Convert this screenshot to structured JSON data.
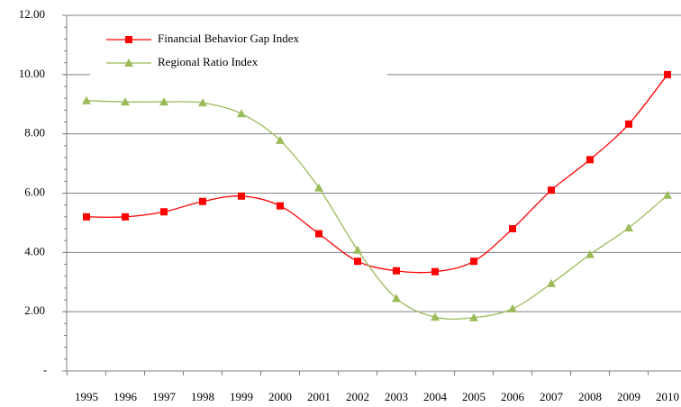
{
  "chart_data": {
    "type": "line",
    "categories": [
      "1995",
      "1996",
      "1997",
      "1998",
      "1999",
      "2000",
      "2001",
      "2002",
      "2003",
      "2004",
      "2005",
      "2006",
      "2007",
      "2008",
      "2009",
      "2010"
    ],
    "series": [
      {
        "name": "Financial Behavior Gap Index",
        "color": "#ff0000",
        "marker": "square",
        "values": [
          5.2,
          5.2,
          5.37,
          5.72,
          5.9,
          5.57,
          4.63,
          3.7,
          3.38,
          3.35,
          3.7,
          4.8,
          6.1,
          7.13,
          8.33,
          10.0
        ]
      },
      {
        "name": "Regional Ratio Index",
        "color": "#9bbb59",
        "marker": "triangle",
        "values": [
          9.12,
          9.08,
          9.08,
          9.05,
          8.68,
          7.78,
          6.18,
          4.08,
          2.45,
          1.82,
          1.8,
          2.1,
          2.95,
          3.93,
          4.83,
          5.93
        ]
      }
    ],
    "ylim": [
      0,
      12
    ],
    "yticks": [
      {
        "value": 0,
        "label": "-"
      },
      {
        "value": 2,
        "label": "2.00"
      },
      {
        "value": 4,
        "label": "4.00"
      },
      {
        "value": 6,
        "label": "6.00"
      },
      {
        "value": 8,
        "label": "8.00"
      },
      {
        "value": 10,
        "label": "10.00"
      },
      {
        "value": 12,
        "label": "12.00"
      }
    ],
    "grid": true,
    "legend": "top-left",
    "smooth": true
  }
}
